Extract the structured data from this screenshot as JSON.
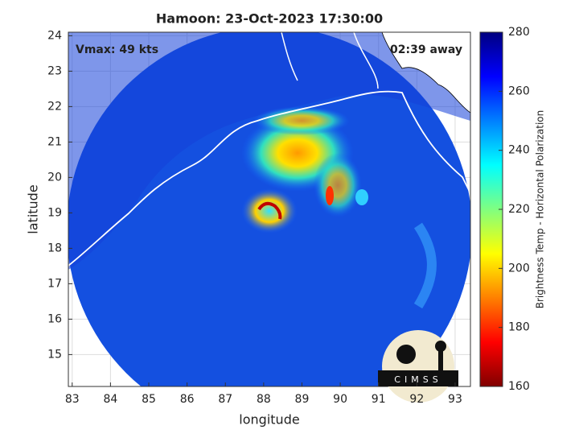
{
  "chart_data": {
    "type": "map",
    "title": "Hamoon: 23-Oct-2023 17:30:00",
    "xlabel": "longitude",
    "ylabel": "latitude",
    "xlim": [
      82.9,
      93.4
    ],
    "ylim": [
      14.1,
      24.1
    ],
    "xticks": [
      83,
      84,
      85,
      86,
      87,
      88,
      89,
      90,
      91,
      92,
      93
    ],
    "yticks": [
      15,
      16,
      17,
      18,
      19,
      20,
      21,
      22,
      23,
      24
    ],
    "grid": true,
    "annotations": [
      "Vmax: 49 kts",
      "02:39 away"
    ],
    "logo": "CIMSS",
    "colorbar": {
      "label": "Brightness Temp - Horizontal Polarization",
      "lim": [
        160,
        280
      ],
      "ticks": [
        160,
        180,
        200,
        220,
        240,
        260,
        280
      ],
      "colormap": [
        "#800000",
        "#ff0000",
        "#ff8000",
        "#ffff00",
        "#80ff80",
        "#00ffff",
        "#0080ff",
        "#0000ff",
        "#000080"
      ]
    }
  }
}
